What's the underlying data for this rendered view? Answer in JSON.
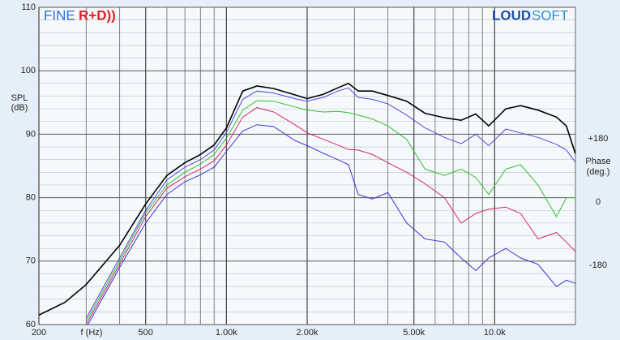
{
  "chart_data": {
    "type": "line",
    "logx": true,
    "logo_left": [
      "FINE",
      "R+D))"
    ],
    "logo_right": [
      "LOUD",
      "SOFT"
    ],
    "ylabel": [
      "SPL",
      "(dB)"
    ],
    "y2label": [
      "Phase",
      "(deg.)"
    ],
    "xlabel": "f (Hz)",
    "x": [
      200,
      250,
      300,
      400,
      500,
      600,
      700,
      800,
      900,
      1000,
      1150,
      1300,
      1500,
      1800,
      2000,
      2300,
      2600,
      2850,
      3100,
      3500,
      4000,
      4700,
      5500,
      6500,
      7500,
      8500,
      9500,
      11000,
      12500,
      14500,
      17000,
      18500,
      20000
    ],
    "series": [
      {
        "color": "#000000",
        "values": [
          61.5,
          63.5,
          66.3,
          72.5,
          79,
          83.5,
          85.5,
          86.8,
          88.3,
          91,
          96.8,
          97.6,
          97.2,
          96.2,
          95.6,
          96.3,
          97.3,
          98,
          96.8,
          96.8,
          96.1,
          95.2,
          93.3,
          92.6,
          92.2,
          93.2,
          91.3,
          94,
          94.5,
          93.8,
          92.7,
          91.3,
          86.9
        ]
      },
      {
        "color": "#4a4ae6",
        "values": [
          null,
          null,
          61,
          70.5,
          78,
          82.8,
          84.8,
          86,
          87.5,
          90.3,
          95.5,
          96.8,
          96.5,
          95.6,
          95.2,
          95.8,
          96.8,
          97.3,
          95.8,
          95.5,
          94.8,
          93,
          91,
          89.5,
          88.5,
          90,
          88.2,
          90.8,
          90.2,
          89.5,
          88.4,
          87.5,
          85.6
        ]
      },
      {
        "color": "#2fbf2f",
        "values": [
          null,
          null,
          60.5,
          70,
          77.6,
          82,
          84,
          85.3,
          86.8,
          89.4,
          93.8,
          95.3,
          95.2,
          94.3,
          93.8,
          93.5,
          93.6,
          93.4,
          93,
          92.4,
          91.3,
          89.2,
          84.5,
          83.5,
          84.5,
          83.2,
          80.5,
          84.5,
          85.2,
          82,
          77,
          80,
          80
        ]
      },
      {
        "color": "#d4286a",
        "values": [
          null,
          null,
          60,
          69.5,
          77,
          81.5,
          83.3,
          84.5,
          85.8,
          88.3,
          92.7,
          94.2,
          93.5,
          91.5,
          90.2,
          89.2,
          88.3,
          87.6,
          87.5,
          86.8,
          85.5,
          84,
          82.2,
          80,
          76,
          77.5,
          78.2,
          78.5,
          77.5,
          73.5,
          74.5,
          73,
          71.5
        ]
      },
      {
        "color": "#3535d6",
        "values": [
          null,
          null,
          59.5,
          69,
          76,
          80.5,
          82.5,
          83.6,
          84.8,
          87.3,
          90.5,
          91.5,
          91.2,
          89,
          88.2,
          87,
          86,
          85.2,
          80.5,
          79.8,
          80.8,
          76,
          73.5,
          73,
          70.5,
          68.5,
          70.5,
          72,
          70.5,
          69.5,
          66,
          67,
          66.5
        ]
      }
    ],
    "xlim": [
      200,
      20000
    ],
    "xticks": [
      200,
      500,
      {
        "value": 1000,
        "label": "1.00k"
      },
      {
        "value": 2000,
        "label": "2.00k"
      },
      {
        "value": 5000,
        "label": "5.00k"
      },
      {
        "value": 10000,
        "label": "10.0k"
      }
    ],
    "xgrid": [
      300,
      400,
      600,
      700,
      800,
      900,
      3000,
      4000,
      6000,
      7000,
      8000,
      9000,
      20000
    ],
    "ylim": [
      60,
      110
    ],
    "yticks": [
      60,
      70,
      80,
      90,
      100,
      110
    ],
    "ygrid": [
      62,
      64,
      66,
      68,
      72,
      74,
      76,
      78,
      82,
      84,
      86,
      88,
      92,
      94,
      96,
      98,
      102,
      104,
      106,
      108
    ],
    "y2lim": [
      -348,
      554
    ],
    "y2ticks": [
      {
        "value": 180,
        "label": "+180"
      },
      0,
      -180
    ],
    "grid": true
  }
}
